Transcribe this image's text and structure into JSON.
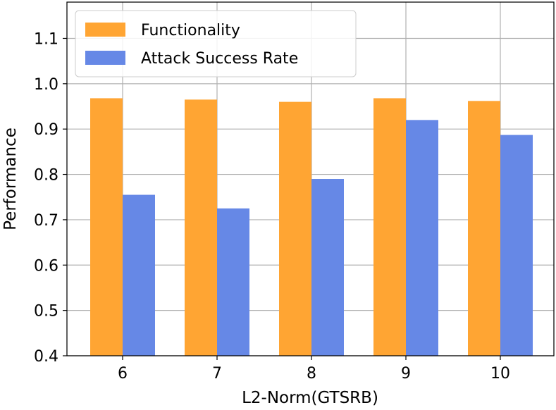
{
  "chart_data": {
    "type": "bar",
    "title": "",
    "xlabel": "L2-Norm(GTSRB)",
    "ylabel": "Performance",
    "categories": [
      "6",
      "7",
      "8",
      "9",
      "10"
    ],
    "series": [
      {
        "name": "Functionality",
        "color": "#ffa533",
        "values": [
          0.968,
          0.965,
          0.96,
          0.968,
          0.962
        ]
      },
      {
        "name": "Attack Success Rate",
        "color": "#6688e6",
        "values": [
          0.755,
          0.725,
          0.79,
          0.92,
          0.887
        ]
      }
    ],
    "ylim": [
      0.4,
      1.18
    ],
    "yticks": [
      "0.4",
      "0.5",
      "0.6",
      "0.7",
      "0.8",
      "0.9",
      "1.0",
      "1.1"
    ],
    "grid": true,
    "legend_position": "top-left"
  }
}
